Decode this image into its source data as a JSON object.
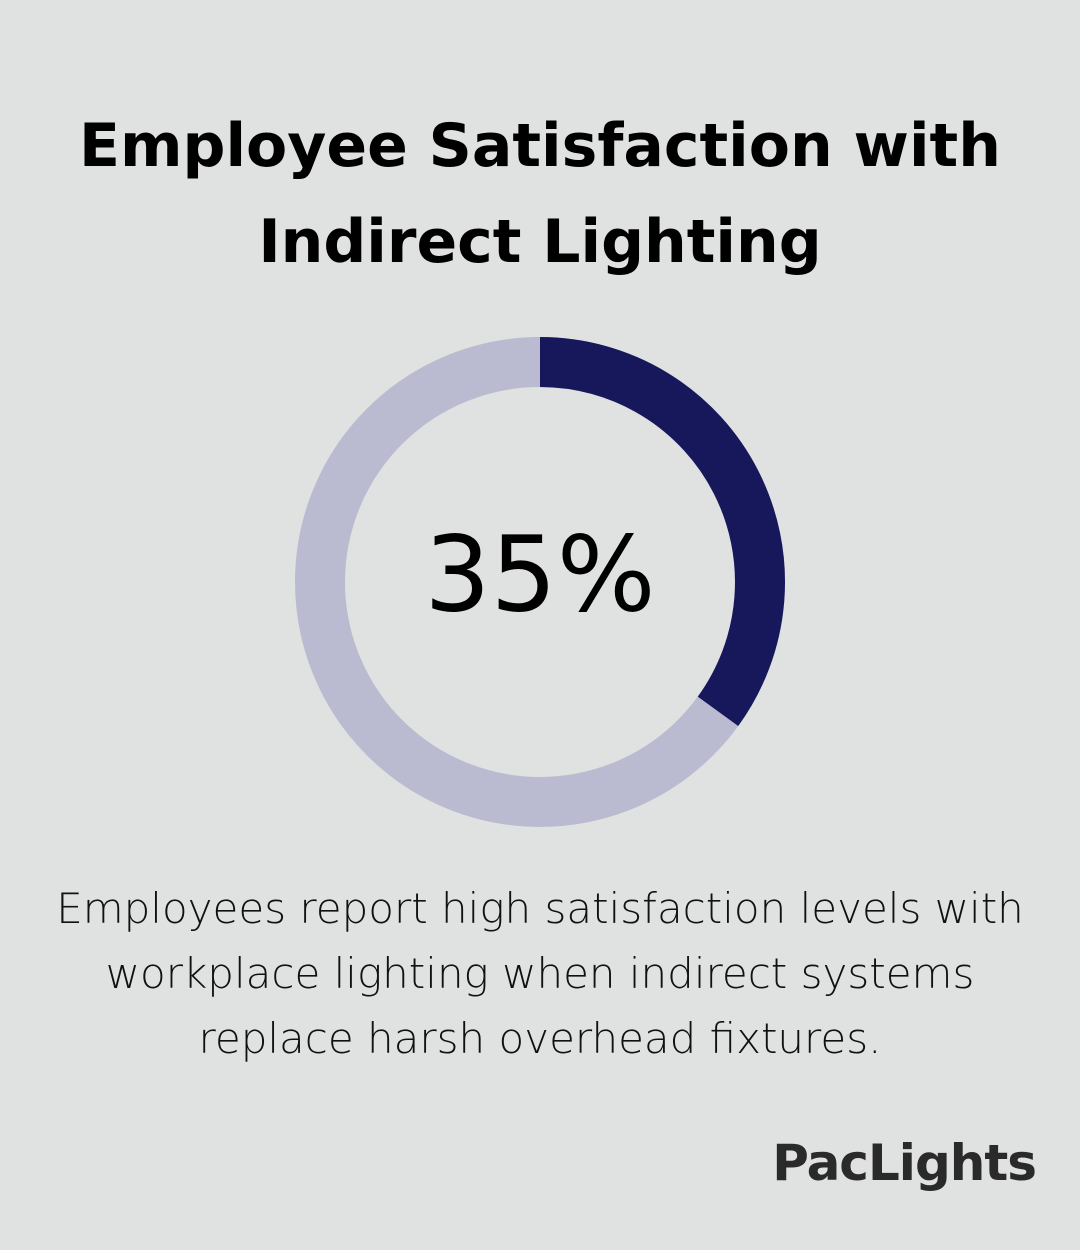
{
  "chart_data": {
    "type": "donut",
    "title": "Employee Satisfaction with Indirect Lighting",
    "values": [
      35
    ],
    "value_labels": [
      "35%"
    ],
    "color": "#17175c",
    "track_color": "#babbd1",
    "caption": "Employees report high satisfaction levels with workplace lighting when indirect systems replace harsh overhead fixtures."
  },
  "brand": "PacLights"
}
